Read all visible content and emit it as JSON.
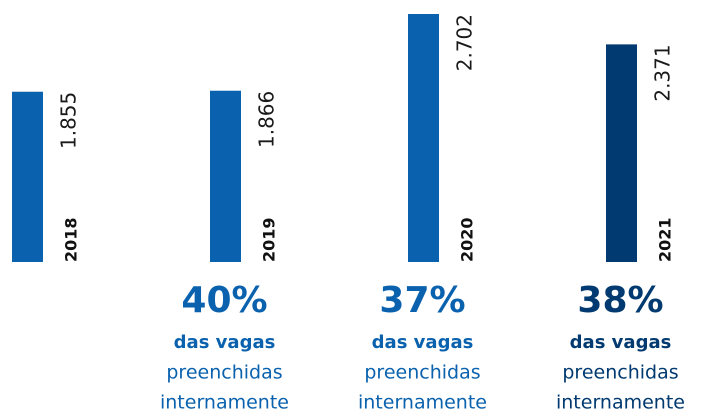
{
  "chart_data": {
    "type": "bar",
    "categories": [
      "2018",
      "2019",
      "2020",
      "2021"
    ],
    "values": [
      1855,
      1866,
      2702,
      2371
    ],
    "value_labels": [
      "1.855",
      "1.866",
      "2.702",
      "2.371"
    ],
    "colors": [
      "#0a62ae",
      "#0a62ae",
      "#0a62ae",
      "#003a70"
    ],
    "annotations": [
      null,
      {
        "value": "40%",
        "line1": "das vagas",
        "line2": "preenchidas",
        "line3": "internamente"
      },
      {
        "value": "37%",
        "line1": "das vagas",
        "line2": "preenchidas",
        "line3": "internamente"
      },
      {
        "value": "38%",
        "line1": "das vagas",
        "line2": "preenchidas",
        "line3": "internamente"
      }
    ]
  }
}
